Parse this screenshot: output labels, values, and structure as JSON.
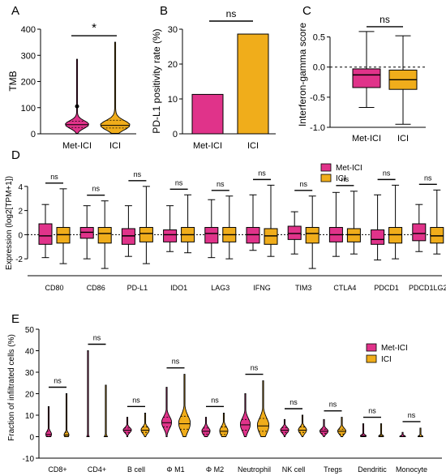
{
  "colors": {
    "metici": "#e0338a",
    "ici": "#f0ad1b",
    "axis": "#000000"
  },
  "chart_data": [
    {
      "panel": "A",
      "type": "violin",
      "ylabel": "TMB",
      "ylim": [
        0,
        400
      ],
      "yticks": [
        0,
        100,
        200,
        300,
        400
      ],
      "categories": [
        "Met-ICI",
        "ICI"
      ],
      "violins": [
        {
          "median": 35,
          "q1": 24,
          "q3": 48,
          "min": 2,
          "max": 285,
          "width": 0.8,
          "outlier": 105
        },
        {
          "median": 32,
          "q1": 22,
          "q3": 52,
          "min": 2,
          "max": 350,
          "width": 1.0
        }
      ],
      "significance": [
        {
          "label": "*",
          "between": [
            0,
            1
          ],
          "y": 375
        }
      ]
    },
    {
      "panel": "B",
      "type": "bar",
      "ylabel": "PD-L1 positivity rate (%)",
      "ylim": [
        0,
        30
      ],
      "yticks": [
        0,
        10,
        20,
        30
      ],
      "categories": [
        "Met-ICI",
        "ICI"
      ],
      "values": [
        11.3,
        28.6
      ],
      "significance": [
        {
          "label": "ns",
          "between": [
            0,
            1
          ],
          "y": 31
        }
      ]
    },
    {
      "panel": "C",
      "type": "box",
      "ylabel": "Interferon-gamma score",
      "ylim": [
        -1.0,
        0.75
      ],
      "yticks": [
        -1.0,
        -0.5,
        0.0,
        0.5
      ],
      "ytick_labels": [
        "-1.0",
        "-0.5",
        "0.0",
        "0.5"
      ],
      "refline": 0,
      "categories": [
        "Met-ICI",
        "ICI"
      ],
      "boxes": [
        {
          "min": -0.67,
          "q1": -0.34,
          "median": -0.13,
          "q3": -0.03,
          "max": 0.59
        },
        {
          "min": -0.95,
          "q1": -0.37,
          "median": -0.21,
          "q3": -0.05,
          "max": 0.52
        }
      ],
      "significance": [
        {
          "label": "ns",
          "between": [
            0,
            1
          ],
          "y": 0.67
        }
      ]
    },
    {
      "panel": "D",
      "type": "box",
      "ylabel": "Expression (log2[TPM+1])",
      "ylim": [
        -3.4,
        5.2
      ],
      "yticks": [
        -2,
        0,
        2,
        4
      ],
      "ytick_labels": [
        "-2",
        "0",
        "2",
        "4"
      ],
      "refline": 0,
      "legend": {
        "position": "top-right",
        "entries": [
          "Met-ICI",
          "ICI"
        ]
      },
      "categories": [
        "CD80",
        "CD86",
        "PD-L1",
        "IDO1",
        "LAG3",
        "IFNG",
        "TIM3",
        "CTLA4",
        "PDCD1",
        "PDCD1LG2"
      ],
      "series": [
        {
          "name": "Met-ICI",
          "boxes": [
            {
              "min": -1.9,
              "q1": -0.8,
              "median": -0.1,
              "q3": 0.9,
              "max": 2.5
            },
            {
              "min": -2.0,
              "q1": -0.3,
              "median": 0.2,
              "q3": 0.6,
              "max": 2.4
            },
            {
              "min": -1.8,
              "q1": -0.8,
              "median": -0.1,
              "q3": 0.5,
              "max": 2.4
            },
            {
              "min": -1.4,
              "q1": -0.6,
              "median": 0.0,
              "q3": 0.4,
              "max": 2.4
            },
            {
              "min": -1.9,
              "q1": -0.7,
              "median": 0.1,
              "q3": 0.6,
              "max": 2.9
            },
            {
              "min": -1.3,
              "q1": -0.7,
              "median": 0.0,
              "q3": 0.6,
              "max": 3.3
            },
            {
              "min": -1.6,
              "q1": -0.4,
              "median": 0.1,
              "q3": 0.7,
              "max": 1.9
            },
            {
              "min": -1.8,
              "q1": -0.6,
              "median": 0.0,
              "q3": 0.6,
              "max": 3.5
            },
            {
              "min": -2.1,
              "q1": -0.8,
              "median": -0.4,
              "q3": 0.4,
              "max": 3.3
            },
            {
              "min": -1.4,
              "q1": -0.5,
              "median": 0.1,
              "q3": 0.9,
              "max": 2.5
            }
          ]
        },
        {
          "name": "ICI",
          "boxes": [
            {
              "min": -2.4,
              "q1": -0.7,
              "median": 0.0,
              "q3": 0.6,
              "max": 3.8
            },
            {
              "min": -2.8,
              "q1": -0.7,
              "median": 0.1,
              "q3": 0.6,
              "max": 2.8
            },
            {
              "min": -2.4,
              "q1": -0.6,
              "median": 0.1,
              "q3": 0.6,
              "max": 4.0
            },
            {
              "min": -1.5,
              "q1": -0.6,
              "median": 0.0,
              "q3": 0.6,
              "max": 3.3
            },
            {
              "min": -2.0,
              "q1": -0.6,
              "median": 0.0,
              "q3": 0.6,
              "max": 3.2
            },
            {
              "min": -1.8,
              "q1": -0.8,
              "median": -0.1,
              "q3": 0.5,
              "max": 4.1
            },
            {
              "min": -2.8,
              "q1": -0.7,
              "median": 0.1,
              "q3": 0.6,
              "max": 3.2
            },
            {
              "min": -1.6,
              "q1": -0.6,
              "median": 0.0,
              "q3": 0.5,
              "max": 3.6
            },
            {
              "min": -2.0,
              "q1": -0.7,
              "median": 0.0,
              "q3": 0.6,
              "max": 4.1
            },
            {
              "min": -1.6,
              "q1": -0.7,
              "median": -0.1,
              "q3": 0.6,
              "max": 3.7
            }
          ]
        }
      ],
      "significance_labels": [
        "ns",
        "ns",
        "ns",
        "ns",
        "ns",
        "ns",
        "ns",
        "ns",
        "ns",
        "ns"
      ]
    },
    {
      "panel": "E",
      "type": "violin",
      "ylabel": "Fraction of infiltrated cells (%)",
      "ylim": [
        -10,
        50
      ],
      "yticks": [
        -10,
        0,
        10,
        20,
        30,
        40,
        50
      ],
      "legend": {
        "position": "top-right",
        "entries": [
          "Met-ICI",
          "ICI"
        ]
      },
      "categories": [
        "CD8+",
        "CD4+",
        "B cell",
        "Φ M1",
        "Φ M2",
        "Neutrophil",
        "NK cell",
        "Tregs",
        "Dendritic",
        "Monocyte"
      ],
      "series": [
        {
          "name": "Met-ICI",
          "violins": [
            {
              "median": 1.0,
              "q1": 0.2,
              "q3": 2.5,
              "min": 0,
              "max": 14,
              "width": 0.35
            },
            {
              "median": 0.0,
              "q1": 0.0,
              "q3": 0.2,
              "min": 0,
              "max": 40,
              "width": 0.15
            },
            {
              "median": 3.0,
              "q1": 2.0,
              "q3": 4.0,
              "min": 0,
              "max": 9,
              "width": 0.5
            },
            {
              "median": 6.5,
              "q1": 4.5,
              "q3": 9.0,
              "min": 0,
              "max": 23,
              "width": 0.6
            },
            {
              "median": 2.5,
              "q1": 1.2,
              "q3": 4.0,
              "min": 0,
              "max": 9,
              "width": 0.5
            },
            {
              "median": 5.5,
              "q1": 3.0,
              "q3": 8.0,
              "min": 0,
              "max": 20,
              "width": 0.6
            },
            {
              "median": 3.0,
              "q1": 2.0,
              "q3": 4.2,
              "min": 0,
              "max": 8,
              "width": 0.5
            },
            {
              "median": 2.5,
              "q1": 1.5,
              "q3": 3.5,
              "min": 0,
              "max": 8,
              "width": 0.5
            },
            {
              "median": 0.3,
              "q1": 0.0,
              "q3": 1.0,
              "min": 0,
              "max": 6,
              "width": 0.35
            },
            {
              "median": 0.0,
              "q1": 0.0,
              "q3": 0.3,
              "min": 0,
              "max": 2,
              "width": 0.35
            }
          ]
        },
        {
          "name": "ICI",
          "violins": [
            {
              "median": 0.8,
              "q1": 0.2,
              "q3": 2.0,
              "min": 0,
              "max": 20,
              "width": 0.3
            },
            {
              "median": 0.0,
              "q1": 0.0,
              "q3": 0.3,
              "min": 0,
              "max": 24,
              "width": 0.2
            },
            {
              "median": 3.0,
              "q1": 2.0,
              "q3": 4.5,
              "min": 0,
              "max": 11,
              "width": 0.5
            },
            {
              "median": 6.0,
              "q1": 3.5,
              "q3": 9.5,
              "min": 0,
              "max": 29,
              "width": 0.7
            },
            {
              "median": 2.5,
              "q1": 1.0,
              "q3": 4.5,
              "min": 0,
              "max": 11,
              "width": 0.5
            },
            {
              "median": 5.0,
              "q1": 2.5,
              "q3": 8.5,
              "min": 0,
              "max": 26,
              "width": 0.7
            },
            {
              "median": 3.0,
              "q1": 2.0,
              "q3": 4.5,
              "min": 0,
              "max": 10,
              "width": 0.5
            },
            {
              "median": 2.5,
              "q1": 1.2,
              "q3": 3.5,
              "min": 0,
              "max": 9,
              "width": 0.5
            },
            {
              "median": 0.2,
              "q1": 0.0,
              "q3": 0.8,
              "min": 0,
              "max": 6,
              "width": 0.3
            },
            {
              "median": 0.0,
              "q1": 0.0,
              "q3": 0.3,
              "min": 0,
              "max": 4,
              "width": 0.3
            }
          ]
        }
      ],
      "significance_labels": [
        "ns",
        "ns",
        "ns",
        "ns",
        "ns",
        "ns",
        "ns",
        "ns",
        "ns",
        "ns"
      ]
    }
  ]
}
